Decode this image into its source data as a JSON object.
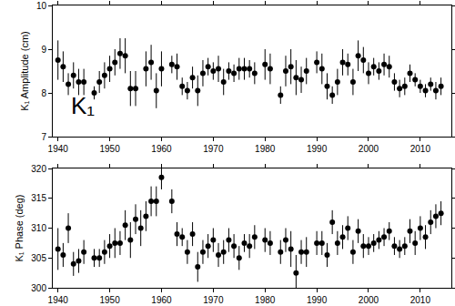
{
  "chart_data": [
    {
      "type": "scatter",
      "ylabel": "K₁ Amplitude (cm)",
      "color": "#000000",
      "marker": "circle",
      "annotations": [
        {
          "text": "K₁"
        }
      ],
      "xlim": [
        1939,
        2016
      ],
      "xticks": [
        1940,
        1950,
        1960,
        1970,
        1980,
        1990,
        2000,
        2010
      ],
      "ylim": [
        7,
        10
      ],
      "yticks": [
        7,
        8,
        9,
        10
      ],
      "grid": false,
      "x": [
        1940,
        1941,
        1942,
        1943,
        1944,
        1945,
        1947,
        1948,
        1949,
        1950,
        1951,
        1952,
        1953,
        1954,
        1955,
        1957,
        1958,
        1959,
        1960,
        1962,
        1963,
        1964,
        1965,
        1966,
        1967,
        1968,
        1969,
        1970,
        1971,
        1972,
        1973,
        1974,
        1975,
        1976,
        1977,
        1978,
        1980,
        1981,
        1983,
        1984,
        1985,
        1986,
        1987,
        1988,
        1990,
        1991,
        1992,
        1993,
        1994,
        1995,
        1996,
        1997,
        1998,
        1999,
        2000,
        2001,
        2002,
        2003,
        2004,
        2005,
        2006,
        2007,
        2008,
        2009,
        2010,
        2011,
        2012,
        2013,
        2014
      ],
      "values": [
        8.75,
        8.6,
        8.2,
        8.4,
        8.25,
        8.25,
        8.0,
        8.25,
        8.4,
        8.55,
        8.7,
        8.9,
        8.85,
        8.1,
        8.1,
        8.55,
        8.7,
        8.05,
        8.55,
        8.65,
        8.6,
        8.15,
        8.05,
        8.35,
        8.05,
        8.45,
        8.6,
        8.5,
        8.55,
        8.25,
        8.5,
        8.45,
        8.55,
        8.55,
        8.55,
        8.45,
        8.65,
        8.55,
        7.95,
        8.5,
        8.6,
        8.35,
        8.3,
        8.5,
        8.7,
        8.55,
        8.15,
        7.95,
        8.25,
        8.7,
        8.65,
        8.25,
        8.85,
        8.75,
        8.45,
        8.6,
        8.5,
        8.65,
        8.6,
        8.25,
        8.1,
        8.15,
        8.45,
        8.3,
        8.15,
        8.05,
        8.2,
        8.05,
        8.15
      ],
      "errors": [
        0.45,
        0.35,
        0.25,
        0.3,
        0.3,
        0.3,
        0.15,
        0.25,
        0.3,
        0.3,
        0.3,
        0.35,
        0.4,
        0.4,
        0.4,
        0.4,
        0.4,
        0.4,
        0.4,
        0.2,
        0.3,
        0.2,
        0.2,
        0.25,
        0.35,
        0.3,
        0.2,
        0.2,
        0.3,
        0.3,
        0.2,
        0.2,
        0.25,
        0.25,
        0.2,
        0.25,
        0.35,
        0.35,
        0.2,
        0.35,
        0.4,
        0.4,
        0.3,
        0.3,
        0.25,
        0.35,
        0.3,
        0.2,
        0.3,
        0.3,
        0.25,
        0.3,
        0.35,
        0.3,
        0.25,
        0.2,
        0.2,
        0.25,
        0.25,
        0.2,
        0.2,
        0.2,
        0.2,
        0.15,
        0.15,
        0.15,
        0.15,
        0.2,
        0.2
      ]
    },
    {
      "type": "scatter",
      "ylabel": "K₁ Phase (deg)",
      "color": "#000000",
      "marker": "circle",
      "xlim": [
        1939,
        2016
      ],
      "xticks": [
        1940,
        1950,
        1960,
        1970,
        1980,
        1990,
        2000,
        2010
      ],
      "ylim": [
        300,
        320
      ],
      "yticks": [
        300,
        305,
        310,
        315,
        320
      ],
      "grid": false,
      "x": [
        1940,
        1941,
        1942,
        1943,
        1944,
        1945,
        1947,
        1948,
        1949,
        1950,
        1951,
        1952,
        1953,
        1954,
        1955,
        1956,
        1957,
        1958,
        1959,
        1960,
        1962,
        1963,
        1964,
        1965,
        1966,
        1967,
        1968,
        1969,
        1970,
        1971,
        1972,
        1973,
        1974,
        1975,
        1976,
        1977,
        1978,
        1980,
        1981,
        1983,
        1984,
        1985,
        1986,
        1987,
        1988,
        1990,
        1991,
        1992,
        1993,
        1994,
        1995,
        1996,
        1997,
        1998,
        1999,
        2000,
        2001,
        2002,
        2003,
        2004,
        2005,
        2006,
        2007,
        2008,
        2009,
        2010,
        2011,
        2012,
        2013,
        2014
      ],
      "values": [
        306.5,
        305.5,
        310,
        304,
        304.5,
        306,
        305,
        305,
        306,
        307,
        307.5,
        307.5,
        310.5,
        308,
        311.5,
        310,
        312,
        314.5,
        314.5,
        318.5,
        314.5,
        309,
        308.5,
        306,
        309,
        303.5,
        306,
        307,
        308,
        305.5,
        306,
        308,
        307,
        305,
        307.5,
        307,
        308.5,
        308,
        307.5,
        306,
        308,
        306.5,
        302.5,
        306,
        306,
        307.5,
        307.5,
        305.5,
        311,
        307.5,
        308.5,
        310,
        306,
        309.5,
        307,
        307,
        307.5,
        308,
        308.5,
        309.5,
        307,
        306.5,
        307,
        309.5,
        307.5,
        310,
        308.5,
        311,
        312,
        312.5
      ],
      "errors": [
        3.5,
        2,
        2.5,
        2,
        2,
        2,
        1.5,
        1.5,
        2,
        2,
        2.5,
        2,
        2.5,
        3,
        2.5,
        3,
        2.5,
        2.5,
        2.5,
        2,
        2,
        2,
        1.5,
        2,
        2,
        2.5,
        2,
        2,
        2,
        2,
        2,
        2,
        2,
        2,
        1.5,
        2,
        2,
        2,
        2,
        2,
        2,
        3,
        3,
        2,
        2.5,
        2,
        2,
        2,
        2,
        2,
        2,
        2,
        2,
        2,
        2,
        1.5,
        1.5,
        1.5,
        1.5,
        1.5,
        1.5,
        1.5,
        1.5,
        2,
        2,
        2,
        2,
        2,
        2,
        2
      ]
    }
  ]
}
